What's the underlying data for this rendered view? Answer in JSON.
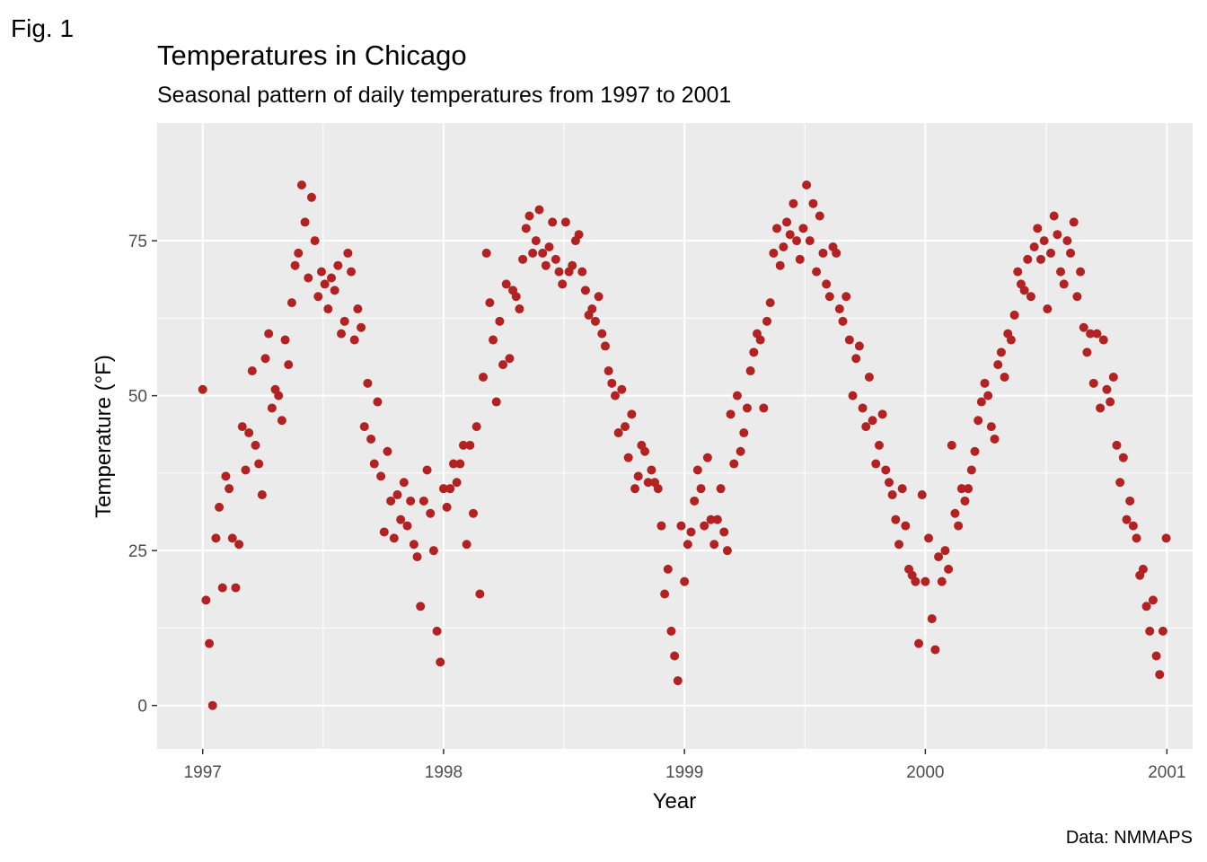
{
  "figure_label": "Fig. 1",
  "caption": "Data: NMMAPS",
  "colors": {
    "point": "#B22222",
    "panel": "#EBEBEB",
    "grid": "#FFFFFF"
  },
  "chart_data": {
    "type": "scatter",
    "title": "Temperatures in Chicago",
    "subtitle": "Seasonal pattern of daily temperatures from 1997 to 2001",
    "xlabel": "Year",
    "ylabel": "Temperature (°F)",
    "xlim": [
      "1996-10-24",
      "2001-02-09"
    ],
    "ylim": [
      -7,
      94
    ],
    "x_ticks": [
      "1997",
      "1998",
      "1999",
      "2000",
      "2001"
    ],
    "y_ticks": [
      0,
      25,
      50,
      75
    ],
    "grid": true,
    "legend": "none",
    "series": [
      {
        "point_color": "#B22222",
        "x": [
          "1997-01-01",
          "1997-01-06",
          "1997-01-11",
          "1997-01-16",
          "1997-01-21",
          "1997-01-26",
          "1997-01-31",
          "1997-02-05",
          "1997-02-10",
          "1997-02-15",
          "1997-02-20",
          "1997-02-25",
          "1997-03-02",
          "1997-03-07",
          "1997-03-12",
          "1997-03-17",
          "1997-03-22",
          "1997-03-27",
          "1997-04-01",
          "1997-04-06",
          "1997-04-11",
          "1997-04-16",
          "1997-04-21",
          "1997-04-26",
          "1997-05-01",
          "1997-05-06",
          "1997-05-11",
          "1997-05-16",
          "1997-05-21",
          "1997-05-26",
          "1997-05-31",
          "1997-06-05",
          "1997-06-10",
          "1997-06-15",
          "1997-06-20",
          "1997-06-25",
          "1997-06-30",
          "1997-07-05",
          "1997-07-10",
          "1997-07-15",
          "1997-07-20",
          "1997-07-25",
          "1997-07-30",
          "1997-08-04",
          "1997-08-09",
          "1997-08-14",
          "1997-08-19",
          "1997-08-24",
          "1997-08-29",
          "1997-09-03",
          "1997-09-08",
          "1997-09-13",
          "1997-09-18",
          "1997-09-23",
          "1997-09-28",
          "1997-10-03",
          "1997-10-08",
          "1997-10-13",
          "1997-10-18",
          "1997-10-23",
          "1997-10-28",
          "1997-11-02",
          "1997-11-07",
          "1997-11-12",
          "1997-11-17",
          "1997-11-22",
          "1997-11-27",
          "1997-12-02",
          "1997-12-07",
          "1997-12-12",
          "1997-12-17",
          "1997-12-22",
          "1997-12-27",
          "1998-01-01",
          "1998-01-06",
          "1998-01-11",
          "1998-01-16",
          "1998-01-21",
          "1998-01-26",
          "1998-01-31",
          "1998-02-05",
          "1998-02-10",
          "1998-02-15",
          "1998-02-20",
          "1998-02-25",
          "1998-03-02",
          "1998-03-07",
          "1998-03-12",
          "1998-03-17",
          "1998-03-22",
          "1998-03-27",
          "1998-04-01",
          "1998-04-06",
          "1998-04-11",
          "1998-04-16",
          "1998-04-21",
          "1998-04-26",
          "1998-05-01",
          "1998-05-06",
          "1998-05-11",
          "1998-05-16",
          "1998-05-21",
          "1998-05-26",
          "1998-05-31",
          "1998-06-05",
          "1998-06-10",
          "1998-06-15",
          "1998-06-20",
          "1998-06-25",
          "1998-06-30",
          "1998-07-05",
          "1998-07-10",
          "1998-07-15",
          "1998-07-20",
          "1998-07-25",
          "1998-07-30",
          "1998-08-04",
          "1998-08-09",
          "1998-08-14",
          "1998-08-19",
          "1998-08-24",
          "1998-08-29",
          "1998-09-03",
          "1998-09-08",
          "1998-09-13",
          "1998-09-18",
          "1998-09-23",
          "1998-09-28",
          "1998-10-03",
          "1998-10-08",
          "1998-10-13",
          "1998-10-18",
          "1998-10-23",
          "1998-10-28",
          "1998-11-02",
          "1998-11-07",
          "1998-11-12",
          "1998-11-17",
          "1998-11-22",
          "1998-11-27",
          "1998-12-02",
          "1998-12-07",
          "1998-12-12",
          "1998-12-17",
          "1998-12-22",
          "1998-12-27",
          "1999-01-01",
          "1999-01-06",
          "1999-01-11",
          "1999-01-16",
          "1999-01-21",
          "1999-01-26",
          "1999-01-31",
          "1999-02-05",
          "1999-02-10",
          "1999-02-15",
          "1999-02-20",
          "1999-02-25",
          "1999-03-02",
          "1999-03-07",
          "1999-03-12",
          "1999-03-17",
          "1999-03-22",
          "1999-03-27",
          "1999-04-01",
          "1999-04-06",
          "1999-04-11",
          "1999-04-16",
          "1999-04-21",
          "1999-04-26",
          "1999-05-01",
          "1999-05-06",
          "1999-05-11",
          "1999-05-16",
          "1999-05-21",
          "1999-05-26",
          "1999-05-31",
          "1999-06-05",
          "1999-06-10",
          "1999-06-15",
          "1999-06-20",
          "1999-06-25",
          "1999-06-30",
          "1999-07-05",
          "1999-07-10",
          "1999-07-15",
          "1999-07-20",
          "1999-07-25",
          "1999-07-30",
          "1999-08-04",
          "1999-08-09",
          "1999-08-14",
          "1999-08-19",
          "1999-08-24",
          "1999-08-29",
          "1999-09-03",
          "1999-09-08",
          "1999-09-13",
          "1999-09-18",
          "1999-09-23",
          "1999-09-28",
          "1999-10-03",
          "1999-10-08",
          "1999-10-13",
          "1999-10-18",
          "1999-10-23",
          "1999-10-28",
          "1999-11-02",
          "1999-11-07",
          "1999-11-12",
          "1999-11-17",
          "1999-11-22",
          "1999-11-27",
          "1999-12-02",
          "1999-12-07",
          "1999-12-12",
          "1999-12-17",
          "1999-12-22",
          "1999-12-27",
          "2000-01-01",
          "2000-01-06",
          "2000-01-11",
          "2000-01-16",
          "2000-01-21",
          "2000-01-26",
          "2000-01-31",
          "2000-02-05",
          "2000-02-10",
          "2000-02-15",
          "2000-02-20",
          "2000-02-25",
          "2000-03-01",
          "2000-03-06",
          "2000-03-11",
          "2000-03-16",
          "2000-03-21",
          "2000-03-26",
          "2000-03-31",
          "2000-04-05",
          "2000-04-10",
          "2000-04-15",
          "2000-04-20",
          "2000-04-25",
          "2000-04-30",
          "2000-05-05",
          "2000-05-10",
          "2000-05-15",
          "2000-05-20",
          "2000-05-25",
          "2000-05-30",
          "2000-06-04",
          "2000-06-09",
          "2000-06-14",
          "2000-06-19",
          "2000-06-24",
          "2000-06-29",
          "2000-07-04",
          "2000-07-09",
          "2000-07-14",
          "2000-07-19",
          "2000-07-24",
          "2000-07-29",
          "2000-08-03",
          "2000-08-08",
          "2000-08-13",
          "2000-08-18",
          "2000-08-23",
          "2000-08-28",
          "2000-09-02",
          "2000-09-07",
          "2000-09-12",
          "2000-09-17",
          "2000-09-22",
          "2000-09-27",
          "2000-10-02",
          "2000-10-07",
          "2000-10-12",
          "2000-10-17",
          "2000-10-22",
          "2000-10-27",
          "2000-11-01",
          "2000-11-06",
          "2000-11-11",
          "2000-11-16",
          "2000-11-21",
          "2000-11-26",
          "2000-12-01",
          "2000-12-06",
          "2000-12-11",
          "2000-12-16",
          "2000-12-21",
          "2000-12-26",
          "2000-12-31"
        ],
        "y": [
          51,
          17,
          10,
          0,
          27,
          32,
          19,
          37,
          35,
          27,
          19,
          26,
          45,
          38,
          44,
          54,
          42,
          39,
          34,
          56,
          60,
          48,
          51,
          50,
          46,
          59,
          55,
          65,
          71,
          73,
          84,
          78,
          69,
          82,
          75,
          66,
          70,
          68,
          64,
          69,
          67,
          71,
          60,
          62,
          73,
          70,
          59,
          64,
          61,
          45,
          52,
          43,
          39,
          49,
          37,
          28,
          41,
          33,
          27,
          34,
          30,
          36,
          29,
          33,
          26,
          24,
          16,
          33,
          38,
          31,
          25,
          12,
          7,
          35,
          32,
          35,
          39,
          36,
          39,
          42,
          26,
          42,
          31,
          45,
          18,
          53,
          73,
          65,
          59,
          49,
          62,
          55,
          68,
          56,
          67,
          66,
          64,
          72,
          77,
          79,
          73,
          75,
          80,
          73,
          71,
          74,
          78,
          72,
          70,
          68,
          78,
          70,
          71,
          75,
          76,
          70,
          67,
          63,
          64,
          62,
          66,
          60,
          58,
          54,
          52,
          50,
          44,
          51,
          45,
          40,
          47,
          35,
          37,
          42,
          41,
          36,
          38,
          36,
          35,
          29,
          18,
          22,
          12,
          8,
          4,
          29,
          20,
          26,
          28,
          33,
          38,
          35,
          29,
          40,
          30,
          26,
          30,
          35,
          28,
          25,
          47,
          39,
          50,
          41,
          44,
          48,
          54,
          57,
          60,
          59,
          48,
          62,
          65,
          73,
          77,
          71,
          74,
          78,
          76,
          81,
          75,
          72,
          77,
          84,
          75,
          81,
          70,
          79,
          73,
          68,
          66,
          74,
          73,
          64,
          62,
          66,
          59,
          50,
          56,
          58,
          48,
          45,
          53,
          46,
          39,
          42,
          47,
          38,
          36,
          34,
          30,
          26,
          35,
          29,
          22,
          21,
          20,
          10,
          34,
          20,
          27,
          14,
          9,
          24,
          20,
          25,
          22,
          42,
          31,
          29,
          35,
          33,
          35,
          38,
          41,
          46,
          49,
          52,
          50,
          45,
          43,
          55,
          57,
          53,
          60,
          59,
          63,
          70,
          68,
          67,
          72,
          66,
          74,
          77,
          72,
          75,
          64,
          73,
          79,
          76,
          70,
          68,
          75,
          73,
          78,
          66,
          70,
          61,
          57,
          60,
          52,
          60,
          48,
          59,
          51,
          49,
          53,
          42,
          36,
          40,
          30,
          33,
          29,
          27,
          21,
          22,
          16,
          12,
          17,
          8,
          5,
          12,
          27
        ]
      }
    ]
  }
}
